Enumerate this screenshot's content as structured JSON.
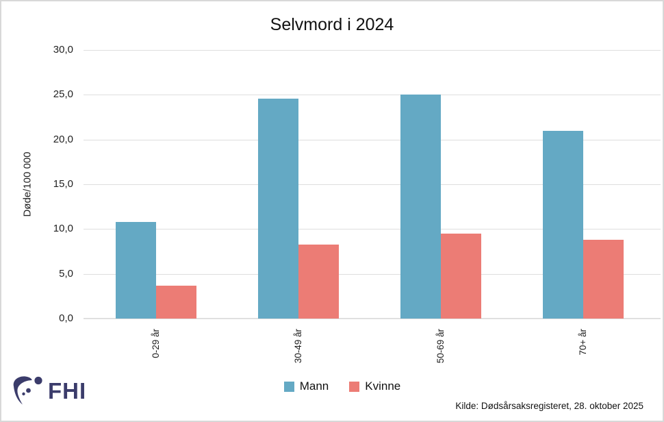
{
  "title": "Selvmord i 2024",
  "chart_data": {
    "type": "bar",
    "title": "Selvmord i 2024",
    "ylabel": "Døde/100 000",
    "xlabel": "",
    "ylim": [
      0,
      30
    ],
    "grid": true,
    "legend_position": "bottom",
    "categories": [
      "0-29 år",
      "30-49 år",
      "50-69 år",
      "70+ år"
    ],
    "y_ticks": [
      {
        "value": 0,
        "label": "0,0"
      },
      {
        "value": 5,
        "label": "5,0"
      },
      {
        "value": 10,
        "label": "10,0"
      },
      {
        "value": 15,
        "label": "15,0"
      },
      {
        "value": 20,
        "label": "20,0"
      },
      {
        "value": 25,
        "label": "25,0"
      },
      {
        "value": 30,
        "label": "30,0"
      }
    ],
    "series": [
      {
        "name": "Mann",
        "color": "#64A9C4",
        "values": [
          10.8,
          24.6,
          25.0,
          21.0
        ]
      },
      {
        "name": "Kvinne",
        "color": "#EC7C75",
        "values": [
          3.7,
          8.3,
          9.5,
          8.8
        ]
      }
    ]
  },
  "footer": {
    "source": "Kilde: Dødsårsaksregisteret, 28. oktober 2025",
    "logo_text": "FHI"
  },
  "colors": {
    "mann": "#64A9C4",
    "kvinne": "#EC7C75",
    "gridline": "#DEDEDE",
    "baseline": "#E0E0E0",
    "logo_navy": "#3B3C6B"
  }
}
